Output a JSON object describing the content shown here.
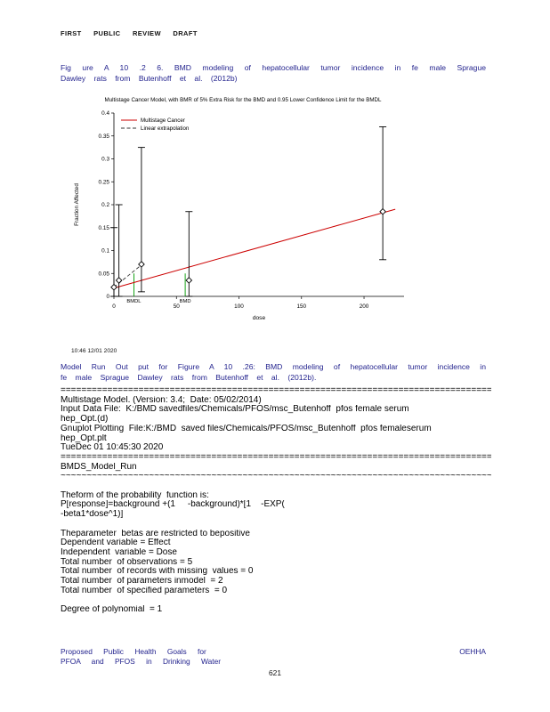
{
  "page": {
    "header": "FIRST PUBLIC REVIEW DRAFT",
    "footer_left_line1": "Proposed Public Health Goals for",
    "footer_left_line2": "PFOA and PFOS in Drinking Water",
    "footer_right": "OEHHA",
    "page_number": "621"
  },
  "figure": {
    "caption_line1": "Fig ure A 10 .2 6. BMD modeling of hepatocellular tumor incidence in fe male Sprague",
    "caption_line2": "Dawley rats from Butenhoff et al. (2012b)"
  },
  "model_run": {
    "line1": "Model Run Out put for Figure A 10 .26: BMD modeling of hepatocellular tumor incidence in",
    "line2": "fe male Sprague Dawley rats from Butenhoff et al. (2012b)."
  },
  "chart_data": {
    "type": "scatter",
    "title": "Multistage Cancer Model, with BMR of 5% Extra Risk for the BMD and 0.95 Lower Confidence Limit for the BMDL",
    "xlabel": "dose",
    "ylabel": "Fraction Affected",
    "xlim": [
      0,
      232
    ],
    "ylim": [
      0,
      0.4
    ],
    "xticks": [
      0,
      50,
      100,
      150,
      200
    ],
    "yticks": [
      0,
      0.05,
      0.1,
      0.15,
      0.2,
      0.25,
      0.3,
      0.35,
      0.4
    ],
    "ytick_labels": [
      "0",
      "0.05",
      "0.1",
      "0.15",
      "0.2",
      "0.25",
      "0.3",
      "0.35",
      "0.4"
    ],
    "legend": [
      {
        "label": "Multistage Cancer",
        "color": "#cc0000",
        "style": "solid"
      },
      {
        "label": "Linear extrapolation",
        "color": "#333333",
        "style": "dashed"
      }
    ],
    "points": [
      {
        "dose": 0,
        "fraction": 0.02,
        "ci_lower": 0.0,
        "ci_upper": 0.15
      },
      {
        "dose": 4,
        "fraction": 0.035,
        "ci_lower": 0.0,
        "ci_upper": 0.2
      },
      {
        "dose": 22,
        "fraction": 0.07,
        "ci_lower": 0.01,
        "ci_upper": 0.325
      },
      {
        "dose": 60,
        "fraction": 0.035,
        "ci_lower": 0.0,
        "ci_upper": 0.185
      },
      {
        "dose": 215,
        "fraction": 0.185,
        "ci_lower": 0.08,
        "ci_upper": 0.37
      }
    ],
    "fit_line": {
      "x": [
        0,
        225
      ],
      "y": [
        0.018,
        0.19
      ],
      "color": "#cc0000"
    },
    "extrapolation_line": {
      "x": [
        0,
        24
      ],
      "y": [
        0.02,
        0.073
      ],
      "color": "#333333"
    },
    "bmdl": {
      "value": 16,
      "label": "BMDL",
      "color": "#009900"
    },
    "bmd": {
      "value": 57,
      "label": "BMD",
      "color": "#009900"
    },
    "timestamp": "10:46 12/01 2020"
  },
  "output": {
    "lines": [
      "===================================================================================",
      "Multistage Model. (Version: 3.4;  Date: 05/02/2014)",
      "Input Data File:  K:/BMD savedfiles/Chemicals/PFOS/msc_Butenhoff  pfos female serum",
      "hep_Opt.(d)",
      "Gnuplot Plotting  File:K:/BMD  saved files/Chemicals/PFOS/msc_Butenhoff  pfos femaleserum",
      "hep_Opt.plt",
      "TueDec 01 10:45:30 2020",
      "===================================================================================",
      "BMDS_Model_Run",
      "~~~~~~~~~~~~~~~~~~~~~~~~~~~~~~~~~~~~~~~~~~~~~~~~~~~~~~~~~~~~~~~~~~~~~~~~~~~~~~~~~~~",
      "",
      "Theform of the probability  function is:",
      "P[response]=background +(1     -background)*[1    -EXP(",
      "-beta1*dose^1)]",
      "",
      "Theparameter  betas are restricted to bepositive",
      "Dependent variable = Effect",
      "Independent  variable = Dose",
      "Total number  of observations = 5",
      "Total number  of records with missing  values = 0",
      "Total number  of parameters inmodel  = 2",
      "Total number  of specified parameters  = 0",
      "",
      "Degree of polynomial  = 1"
    ]
  }
}
